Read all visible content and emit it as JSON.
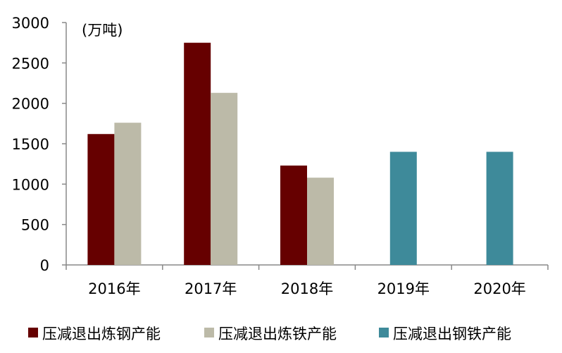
{
  "chart_data": {
    "type": "bar",
    "unit_label": "(万吨)",
    "categories": [
      "2016年",
      "2017年",
      "2018年",
      "2019年",
      "2020年"
    ],
    "series": [
      {
        "name": "压减退出炼钢产能",
        "color": "#660000",
        "values": [
          1620,
          2750,
          1230,
          null,
          null
        ]
      },
      {
        "name": "压减退出炼铁产能",
        "color": "#bcbaa8",
        "values": [
          1760,
          2130,
          1080,
          null,
          null
        ]
      },
      {
        "name": "压减退出钢铁产能",
        "color": "#3e8a9a",
        "values": [
          null,
          null,
          null,
          1400,
          1400
        ]
      }
    ],
    "ylim": [
      0,
      3000
    ],
    "yticks": [
      "0",
      "500",
      "1000",
      "1500",
      "2000",
      "2500",
      "3000"
    ],
    "grid": false,
    "legend_position": "bottom"
  }
}
